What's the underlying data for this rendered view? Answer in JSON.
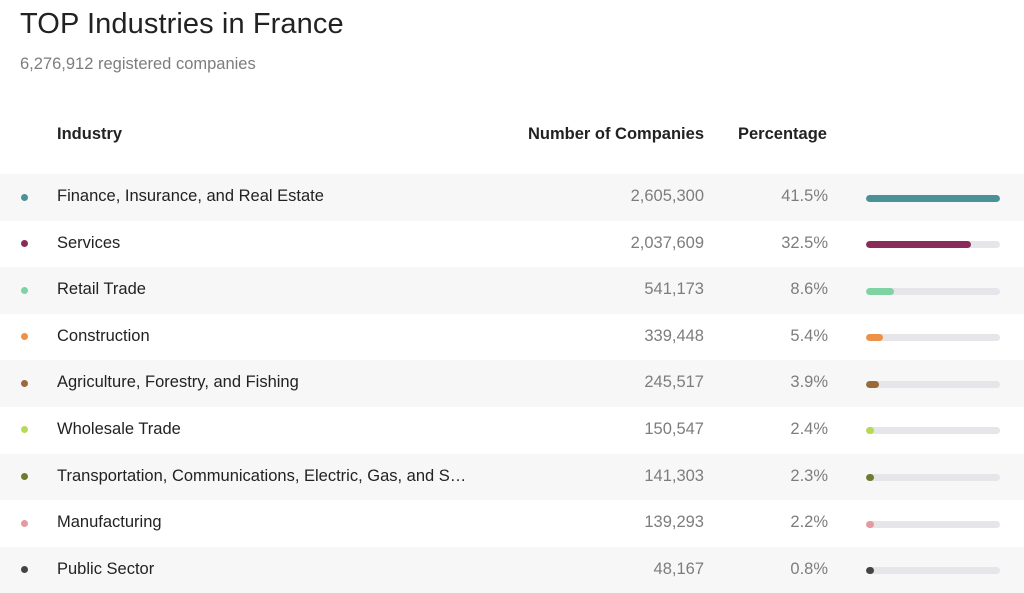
{
  "header": {
    "title": "TOP Industries in France",
    "subtitle": "6,276,912 registered companies"
  },
  "table": {
    "columns": {
      "industry": "Industry",
      "count": "Number of Companies",
      "percentage": "Percentage"
    },
    "rows": [
      {
        "name": "Finance, Insurance, and Real Estate",
        "count": "2,605,300",
        "percentage": "41.5%",
        "share": 0.415,
        "color": "#4a9198"
      },
      {
        "name": "Services",
        "count": "2,037,609",
        "percentage": "32.5%",
        "share": 0.325,
        "color": "#8a2b5a"
      },
      {
        "name": "Retail Trade",
        "count": "541,173",
        "percentage": "8.6%",
        "share": 0.086,
        "color": "#7fd3a2"
      },
      {
        "name": "Construction",
        "count": "339,448",
        "percentage": "5.4%",
        "share": 0.054,
        "color": "#ee9148"
      },
      {
        "name": "Agriculture, Forestry, and Fishing",
        "count": "245,517",
        "percentage": "3.9%",
        "share": 0.039,
        "color": "#9a6a38"
      },
      {
        "name": "Wholesale Trade",
        "count": "150,547",
        "percentage": "2.4%",
        "share": 0.024,
        "color": "#b5da56"
      },
      {
        "name": "Transportation, Communications, Electric, Gas, and S…",
        "count": "141,303",
        "percentage": "2.3%",
        "share": 0.023,
        "color": "#6f7a2e"
      },
      {
        "name": "Manufacturing",
        "count": "139,293",
        "percentage": "2.2%",
        "share": 0.022,
        "color": "#e49aa0"
      },
      {
        "name": "Public Sector",
        "count": "48,167",
        "percentage": "0.8%",
        "share": 0.008,
        "color": "#444444"
      }
    ]
  }
}
